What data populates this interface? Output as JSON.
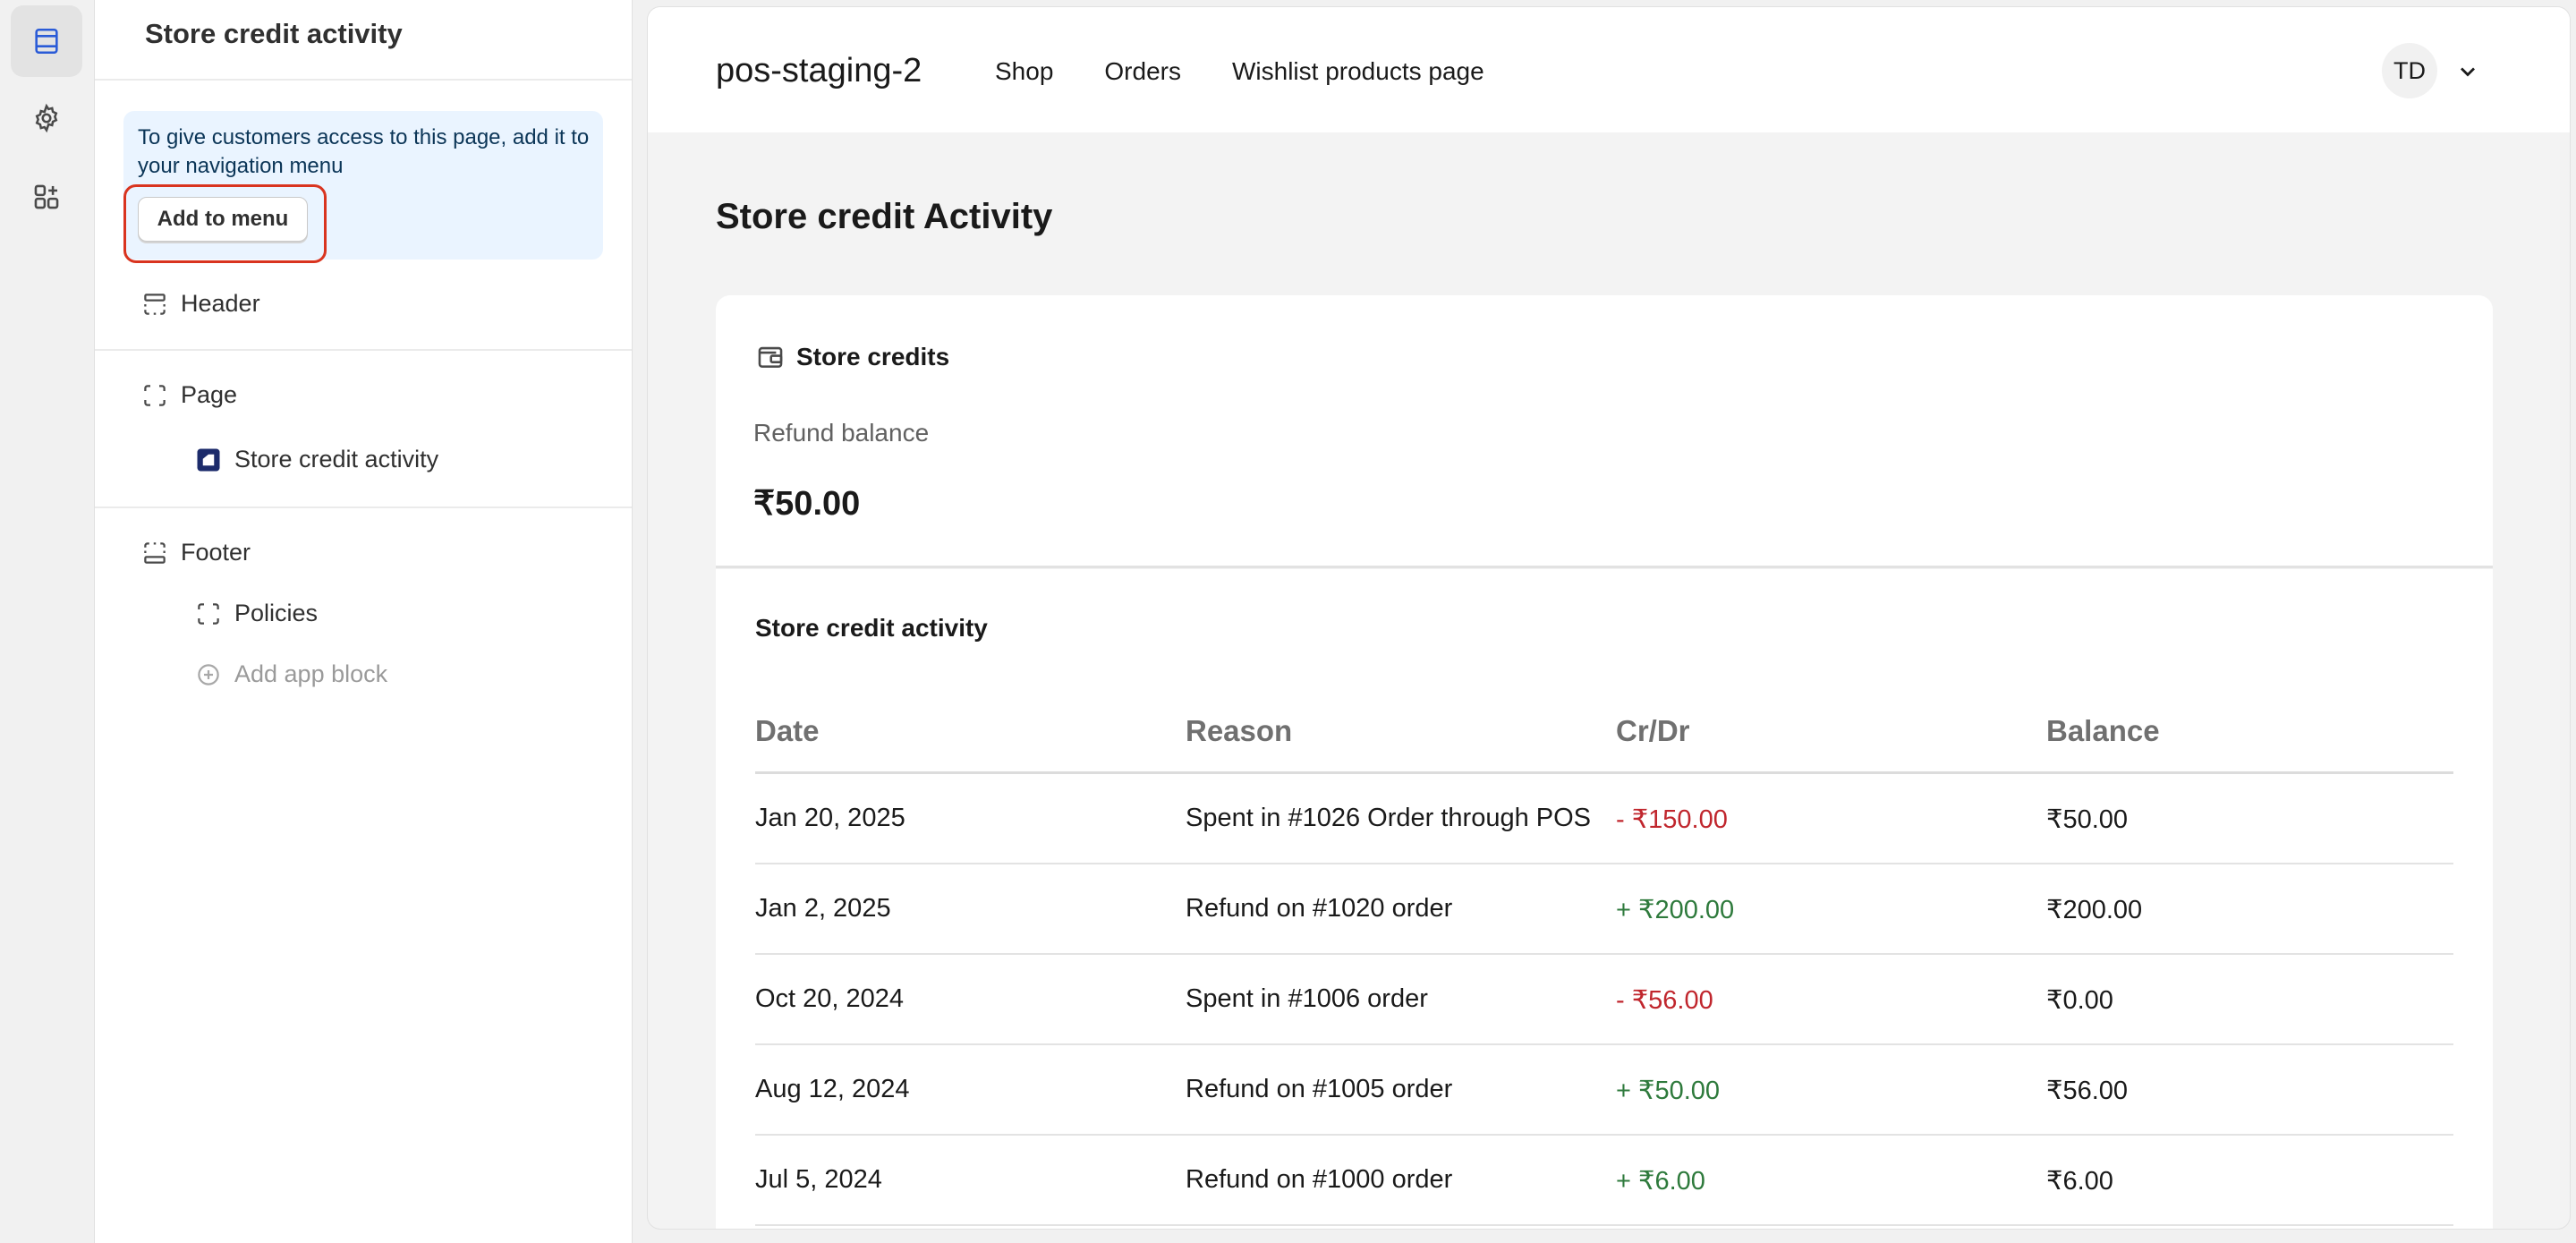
{
  "rail": {
    "items": [
      "layout-icon",
      "settings-icon",
      "apps-icon"
    ]
  },
  "sidebar": {
    "title": "Store credit activity",
    "banner": {
      "text": "To give customers access to this page, add it to your navigation menu",
      "button_label": "Add to menu"
    },
    "header_label": "Header",
    "page_label": "Page",
    "page_child_label": "Store credit activity",
    "footer_label": "Footer",
    "footer_child_label": "Policies",
    "add_app_block_label": "Add app block"
  },
  "preview": {
    "store_name": "pos-staging-2",
    "nav": [
      "Shop",
      "Orders",
      "Wishlist products page"
    ],
    "avatar_initials": "TD",
    "heading": "Store credit Activity",
    "credits_card": {
      "title": "Store credits",
      "refund_label": "Refund balance",
      "refund_amount": "₹50.00"
    },
    "activity": {
      "title": "Store credit activity",
      "columns": [
        "Date",
        "Reason",
        "Cr/Dr",
        "Balance"
      ],
      "rows": [
        {
          "date": "Jan 20, 2025",
          "reason": "Spent in #1026 Order through POS",
          "amount": "- ₹150.00",
          "type": "debit",
          "balance": "₹50.00"
        },
        {
          "date": "Jan 2, 2025",
          "reason": "Refund on #1020 order",
          "amount": "+ ₹200.00",
          "type": "credit",
          "balance": "₹200.00"
        },
        {
          "date": "Oct 20, 2024",
          "reason": "Spent in #1006 order",
          "amount": "- ₹56.00",
          "type": "debit",
          "balance": "₹0.00"
        },
        {
          "date": "Aug 12, 2024",
          "reason": "Refund on #1005 order",
          "amount": "+ ₹50.00",
          "type": "credit",
          "balance": "₹56.00"
        },
        {
          "date": "Jul 5, 2024",
          "reason": "Refund on #1000 order",
          "amount": "+ ₹6.00",
          "type": "credit",
          "balance": "₹6.00"
        }
      ]
    }
  },
  "colors": {
    "debit": "#c0262d",
    "credit": "#2e7a3c",
    "banner_bg": "#eaf4ff",
    "highlight": "#d9341f"
  }
}
